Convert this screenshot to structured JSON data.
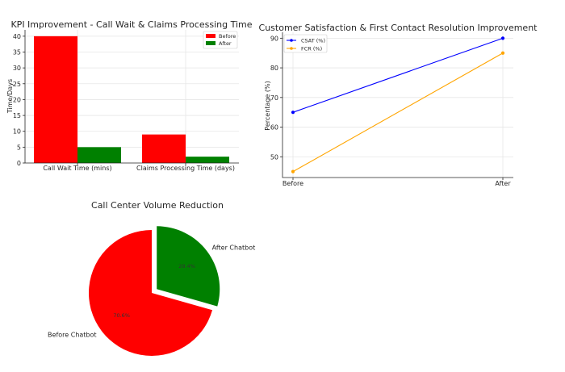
{
  "chart_data": [
    {
      "type": "bar",
      "title": "KPI Improvement - Call Wait & Claims Processing Time",
      "xlabel": "",
      "ylabel": "Time/Days",
      "categories": [
        "Call Wait Time (mins)",
        "Claims Processing Time (days)"
      ],
      "series": [
        {
          "name": "Before",
          "values": [
            40,
            9
          ],
          "color": "#ff0000"
        },
        {
          "name": "After",
          "values": [
            5,
            2
          ],
          "color": "#008000"
        }
      ],
      "ylim": [
        0,
        42
      ],
      "yticks": [
        0,
        5,
        10,
        15,
        20,
        25,
        30,
        35,
        40
      ],
      "grid": true,
      "legend": "top-right"
    },
    {
      "type": "line",
      "title": "Customer Satisfaction & First Contact Resolution Improvement",
      "xlabel": "",
      "ylabel": "Percentage (%)",
      "x": [
        "Before",
        "After"
      ],
      "series": [
        {
          "name": "CSAT (%)",
          "values": [
            65,
            90
          ],
          "color": "#0000ff"
        },
        {
          "name": "FCR (%)",
          "values": [
            45,
            85
          ],
          "color": "#ffa500"
        }
      ],
      "ylim": [
        43,
        92
      ],
      "yticks": [
        50,
        60,
        70,
        80,
        90
      ],
      "grid": true,
      "legend": "top-left"
    },
    {
      "type": "pie",
      "title": "Call Center Volume Reduction",
      "labels": [
        "Before Chatbot",
        "After Chatbot"
      ],
      "values": [
        70.6,
        29.4
      ],
      "percent_labels": [
        "70.6%",
        "29.4%"
      ],
      "colors": [
        "#ff0000",
        "#008000"
      ],
      "explode": [
        0,
        0.1
      ]
    }
  ]
}
